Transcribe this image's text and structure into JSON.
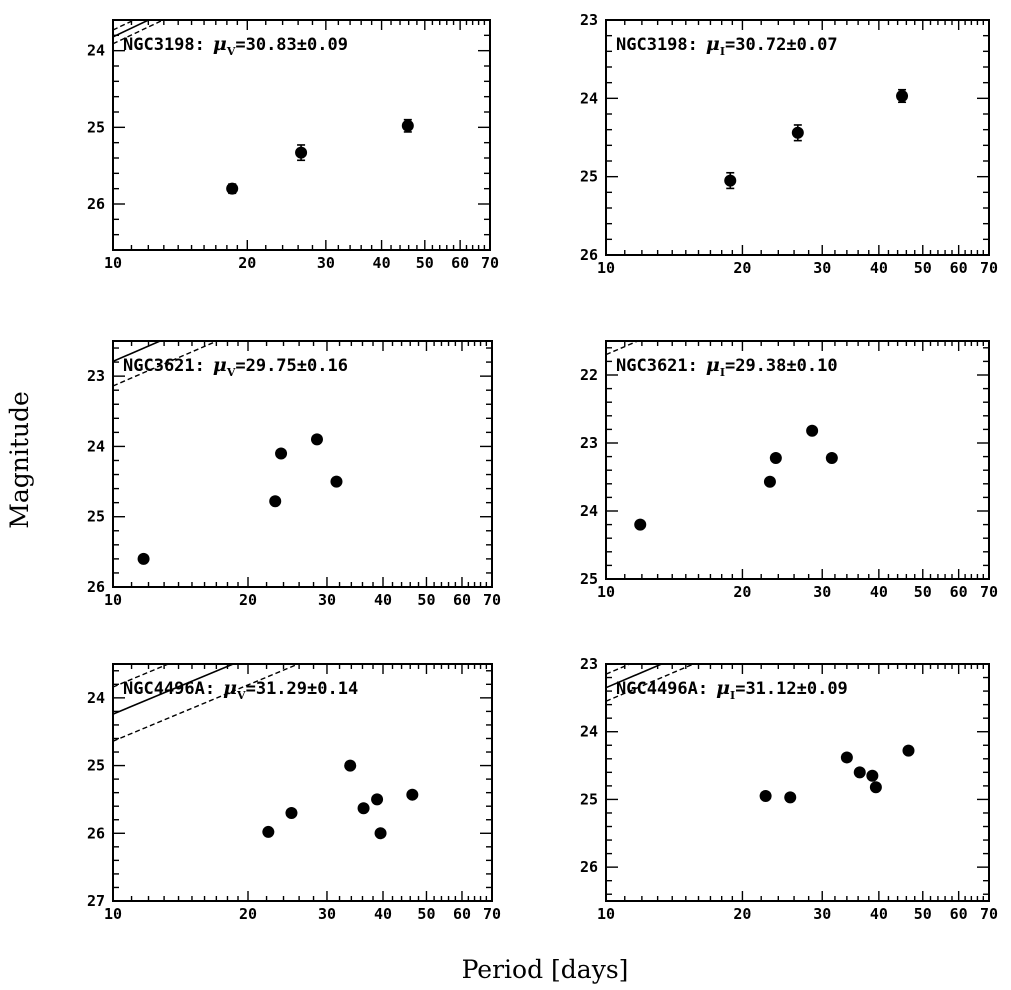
{
  "figure": {
    "xlabel": "Period [days]",
    "ylabel": "Magnitude"
  },
  "chart_data": [
    {
      "type": "scatter",
      "galaxy": "NGC3198",
      "band": "V",
      "label_prefix": "NGC3198:",
      "mu_value": "=30.83±0.09",
      "xscale": "log",
      "xlim": [
        10,
        70
      ],
      "ylim": [
        26.6,
        23.6
      ],
      "xticks": [
        10,
        20,
        30,
        40,
        50,
        60,
        70
      ],
      "xtick_labels": [
        "10",
        "20",
        "30",
        "40",
        "50",
        "60",
        "70"
      ],
      "yticks": [
        24,
        25,
        26
      ],
      "ytick_labels": [
        "24",
        "25",
        "26"
      ],
      "points": [
        {
          "period": 18.5,
          "mag": 25.8,
          "err": 0.06
        },
        {
          "period": 26.4,
          "mag": 25.33,
          "err": 0.1
        },
        {
          "period": 45.8,
          "mag": 24.98,
          "err": 0.08
        }
      ],
      "fit": {
        "slope": -2.76,
        "intercept": 26.58
      },
      "band_offset": 0.09
    },
    {
      "type": "scatter",
      "galaxy": "NGC3198",
      "band": "I",
      "label_prefix": "NGC3198:",
      "mu_value": "=30.72±0.07",
      "xscale": "log",
      "xlim": [
        10,
        70
      ],
      "ylim": [
        26.0,
        23.0
      ],
      "xticks": [
        10,
        20,
        30,
        40,
        50,
        60,
        70
      ],
      "xtick_labels": [
        "10",
        "20",
        "30",
        "40",
        "50",
        "60",
        "70"
      ],
      "yticks": [
        23,
        24,
        25,
        26
      ],
      "ytick_labels": [
        "23",
        "24",
        "25",
        "26"
      ],
      "points": [
        {
          "period": 18.8,
          "mag": 25.05,
          "err": 0.1
        },
        {
          "period": 26.5,
          "mag": 24.44,
          "err": 0.1
        },
        {
          "period": 45.0,
          "mag": 23.97,
          "err": 0.08
        }
      ],
      "fit": {
        "slope": -2.85,
        "intercept": 25.75
      },
      "band_offset": 0.07
    },
    {
      "type": "scatter",
      "galaxy": "NGC3621",
      "band": "V",
      "label_prefix": "NGC3621:",
      "mu_value": "=29.75±0.16",
      "xscale": "log",
      "xlim": [
        10,
        70
      ],
      "ylim": [
        26.0,
        22.5
      ],
      "xticks": [
        10,
        20,
        30,
        40,
        50,
        60,
        70
      ],
      "xtick_labels": [
        "10",
        "20",
        "30",
        "40",
        "50",
        "60",
        "70"
      ],
      "yticks": [
        23,
        24,
        25,
        26
      ],
      "ytick_labels": [
        "23",
        "24",
        "25",
        "26"
      ],
      "points": [
        {
          "period": 11.7,
          "mag": 25.6,
          "err": 0
        },
        {
          "period": 23.0,
          "mag": 24.78,
          "err": 0
        },
        {
          "period": 23.7,
          "mag": 24.1,
          "err": 0
        },
        {
          "period": 28.5,
          "mag": 23.9,
          "err": 0
        },
        {
          "period": 31.5,
          "mag": 24.5,
          "err": 0
        }
      ],
      "fit": {
        "slope": -2.76,
        "intercept": 25.55
      },
      "band_offset": 0.35
    },
    {
      "type": "scatter",
      "galaxy": "NGC3621",
      "band": "I",
      "label_prefix": "NGC3621:",
      "mu_value": "=29.38±0.10",
      "xscale": "log",
      "xlim": [
        10,
        70
      ],
      "ylim": [
        25.0,
        21.5
      ],
      "xticks": [
        10,
        20,
        30,
        40,
        50,
        60,
        70
      ],
      "xtick_labels": [
        "10",
        "20",
        "30",
        "40",
        "50",
        "60",
        "70"
      ],
      "yticks": [
        22,
        23,
        24,
        25
      ],
      "ytick_labels": [
        "22",
        "23",
        "24",
        "25"
      ],
      "points": [
        {
          "period": 11.9,
          "mag": 24.2,
          "err": 0
        },
        {
          "period": 23.0,
          "mag": 23.57,
          "err": 0
        },
        {
          "period": 23.7,
          "mag": 23.22,
          "err": 0
        },
        {
          "period": 28.5,
          "mag": 22.82,
          "err": 0
        },
        {
          "period": 31.5,
          "mag": 23.22,
          "err": 0
        }
      ],
      "fit": {
        "slope": -2.85,
        "intercept": 24.35
      },
      "band_offset": 0.2
    },
    {
      "type": "scatter",
      "galaxy": "NGC4496A",
      "band": "V",
      "label_prefix": "NGC4496A:",
      "mu_value": "=31.29±0.14",
      "xscale": "log",
      "xlim": [
        10,
        70
      ],
      "ylim": [
        27.0,
        23.5
      ],
      "xticks": [
        10,
        20,
        30,
        40,
        50,
        60,
        70
      ],
      "xtick_labels": [
        "10",
        "20",
        "30",
        "40",
        "50",
        "60",
        "70"
      ],
      "yticks": [
        24,
        25,
        26,
        27
      ],
      "ytick_labels": [
        "24",
        "25",
        "26",
        "27"
      ],
      "points": [
        {
          "period": 22.2,
          "mag": 25.98,
          "err": 0
        },
        {
          "period": 25.0,
          "mag": 25.7,
          "err": 0
        },
        {
          "period": 33.8,
          "mag": 25.0,
          "err": 0
        },
        {
          "period": 36.2,
          "mag": 25.63,
          "err": 0
        },
        {
          "period": 38.8,
          "mag": 25.5,
          "err": 0
        },
        {
          "period": 39.5,
          "mag": 26.0,
          "err": 0
        },
        {
          "period": 46.5,
          "mag": 25.43,
          "err": 0
        }
      ],
      "fit": {
        "slope": -2.76,
        "intercept": 27.0
      },
      "band_offset": 0.4
    },
    {
      "type": "scatter",
      "galaxy": "NGC4496A",
      "band": "I",
      "label_prefix": "NGC4496A:",
      "mu_value": "=31.12±0.09",
      "xscale": "log",
      "xlim": [
        10,
        70
      ],
      "ylim": [
        26.5,
        23.0
      ],
      "xticks": [
        10,
        20,
        30,
        40,
        50,
        60,
        70
      ],
      "xtick_labels": [
        "10",
        "20",
        "30",
        "40",
        "50",
        "60",
        "70"
      ],
      "yticks": [
        23,
        24,
        25,
        26
      ],
      "ytick_labels": [
        "23",
        "24",
        "25",
        "26"
      ],
      "points": [
        {
          "period": 22.5,
          "mag": 24.95,
          "err": 0
        },
        {
          "period": 25.5,
          "mag": 24.97,
          "err": 0
        },
        {
          "period": 34.0,
          "mag": 24.38,
          "err": 0
        },
        {
          "period": 36.3,
          "mag": 24.6,
          "err": 0
        },
        {
          "period": 38.7,
          "mag": 24.65,
          "err": 0
        },
        {
          "period": 39.4,
          "mag": 24.82,
          "err": 0
        },
        {
          "period": 46.5,
          "mag": 24.28,
          "err": 0
        }
      ],
      "fit": {
        "slope": -2.85,
        "intercept": 26.2
      },
      "band_offset": 0.2
    }
  ]
}
